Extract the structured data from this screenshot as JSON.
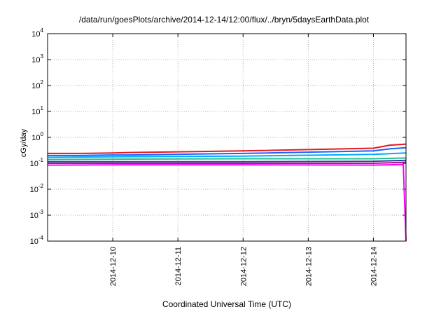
{
  "chart_data": {
    "type": "line",
    "title": "/data/run/goesPlots/archive/2014-12-14/12:00/flux/../bryn/5daysEarthData.plot",
    "xlabel": "Coordinated Universal Time (UTC)",
    "ylabel": "cGy/day",
    "y_scale": "log",
    "ylim": [
      0.0001,
      10000
    ],
    "y_ticks": [
      {
        "value": 0.0001,
        "base": "10",
        "exp": "-4"
      },
      {
        "value": 0.001,
        "base": "10",
        "exp": "-3"
      },
      {
        "value": 0.01,
        "base": "10",
        "exp": "-2"
      },
      {
        "value": 0.1,
        "base": "10",
        "exp": "-1"
      },
      {
        "value": 1,
        "base": "10",
        "exp": "0"
      },
      {
        "value": 10,
        "base": "10",
        "exp": "1"
      },
      {
        "value": 100,
        "base": "10",
        "exp": "2"
      },
      {
        "value": 1000,
        "base": "10",
        "exp": "3"
      },
      {
        "value": 10000,
        "base": "10",
        "exp": "4"
      }
    ],
    "xlim": [
      "2014-12-09 00:00",
      "2014-12-14 12:00"
    ],
    "x_ticks": [
      "2014-12-10",
      "2014-12-11",
      "2014-12-12",
      "2014-12-13",
      "2014-12-14"
    ],
    "grid": true,
    "series": [
      {
        "color": "#e41a1c",
        "x": [
          "2014-12-09 00:00",
          "2014-12-09 12:00",
          "2014-12-10 00:00",
          "2014-12-10 06:00",
          "2014-12-12 00:00",
          "2014-12-14 00:00",
          "2014-12-14 06:00",
          "2014-12-14 12:00"
        ],
        "values": [
          0.24,
          0.24,
          0.25,
          0.26,
          0.3,
          0.38,
          0.5,
          0.55
        ]
      },
      {
        "color": "#1f5fff",
        "x": [
          "2014-12-09 00:00",
          "2014-12-09 12:00",
          "2014-12-10 00:00",
          "2014-12-10 06:00",
          "2014-12-12 00:00",
          "2014-12-14 00:00",
          "2014-12-14 06:00",
          "2014-12-14 12:00"
        ],
        "values": [
          0.2,
          0.2,
          0.21,
          0.21,
          0.24,
          0.3,
          0.36,
          0.4
        ]
      },
      {
        "color": "#00aaff",
        "x": [
          "2014-12-09 00:00",
          "2014-12-10 06:00",
          "2014-12-12 00:00",
          "2014-12-14 00:00",
          "2014-12-14 12:00"
        ],
        "values": [
          0.17,
          0.18,
          0.19,
          0.22,
          0.25
        ]
      },
      {
        "color": "#20c090",
        "x": [
          "2014-12-09 00:00",
          "2014-12-10 06:00",
          "2014-12-12 00:00",
          "2014-12-14 00:00",
          "2014-12-14 12:00"
        ],
        "values": [
          0.14,
          0.145,
          0.15,
          0.15,
          0.16
        ]
      },
      {
        "color": "#2c3e9f",
        "x": [
          "2014-12-09 00:00",
          "2014-12-10 06:00",
          "2014-12-12 00:00",
          "2014-12-14 00:00",
          "2014-12-14 12:00"
        ],
        "values": [
          0.115,
          0.115,
          0.115,
          0.12,
          0.13
        ]
      },
      {
        "color": "#a0207a",
        "x": [
          "2014-12-09 00:00",
          "2014-12-10 06:00",
          "2014-12-12 00:00",
          "2014-12-14 00:00",
          "2014-12-14 12:00"
        ],
        "values": [
          0.1,
          0.1,
          0.1,
          0.1,
          0.11
        ]
      },
      {
        "color": "#ff00ff",
        "x": [
          "2014-12-09 00:00",
          "2014-12-10 06:00",
          "2014-12-12 00:00",
          "2014-12-14 00:00",
          "2014-12-14 11:00",
          "2014-12-14 12:00"
        ],
        "values": [
          0.085,
          0.088,
          0.088,
          0.085,
          0.09,
          0.0001
        ]
      }
    ]
  }
}
